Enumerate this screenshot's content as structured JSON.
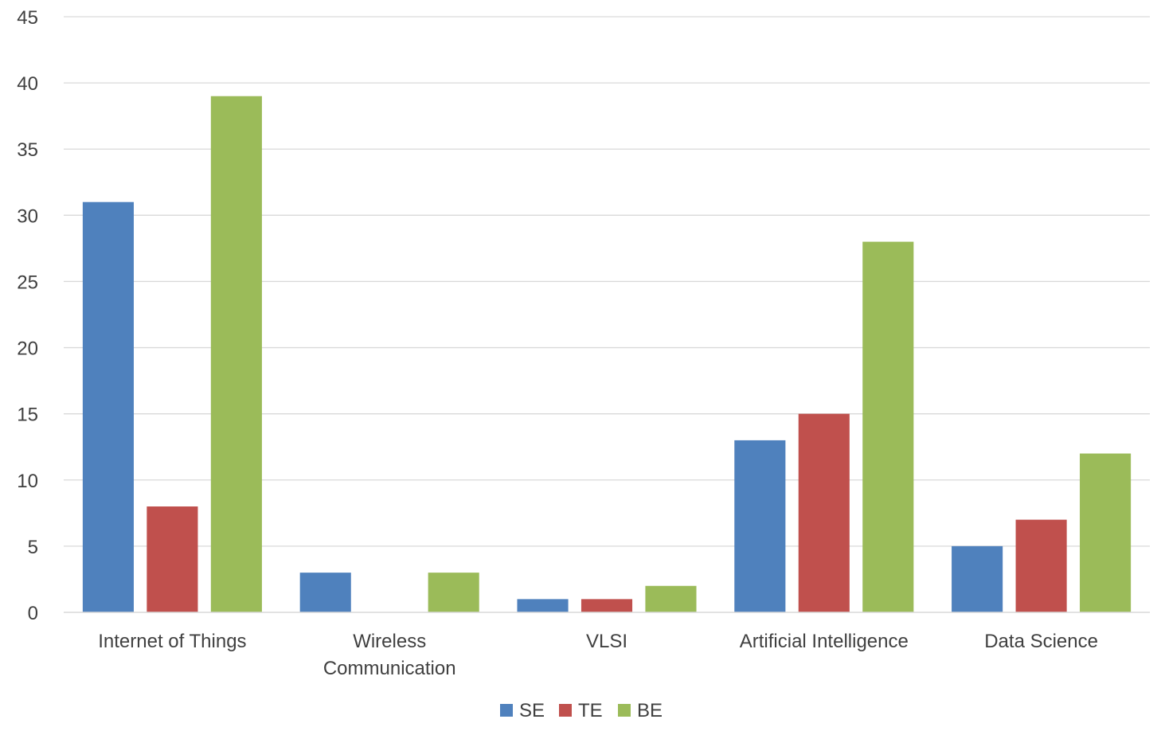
{
  "chart_data": {
    "type": "bar",
    "title": "",
    "xlabel": "",
    "ylabel": "",
    "categories": [
      [
        "Internet of Things"
      ],
      [
        "Wireless",
        "Communication"
      ],
      [
        "VLSI"
      ],
      [
        "Artificial Intelligence"
      ],
      [
        "Data Science"
      ]
    ],
    "series": [
      {
        "name": "SE",
        "color": "#4F81BD",
        "values": [
          31,
          3,
          1,
          13,
          5
        ]
      },
      {
        "name": "TE",
        "color": "#C0504D",
        "values": [
          8,
          0,
          1,
          15,
          7
        ]
      },
      {
        "name": "BE",
        "color": "#9BBB59",
        "values": [
          39,
          3,
          2,
          28,
          12
        ]
      }
    ],
    "ylim": [
      0,
      45
    ],
    "yticks": [
      0,
      5,
      10,
      15,
      20,
      25,
      30,
      35,
      40,
      45
    ],
    "grid": true,
    "legend_position": "bottom"
  }
}
